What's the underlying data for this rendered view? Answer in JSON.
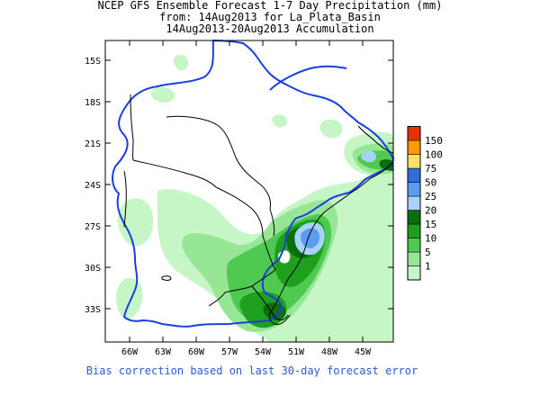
{
  "title": {
    "line1": "NCEP GFS Ensemble Forecast 1-7 Day Precipitation (mm)",
    "line2": "from: 14Aug2013   for La_Plata_Basin",
    "line3": "14Aug2013-20Aug2013 Accumulation"
  },
  "axes": {
    "y_ticks": [
      "15S",
      "18S",
      "21S",
      "24S",
      "27S",
      "30S",
      "33S"
    ],
    "x_ticks": [
      "66W",
      "63W",
      "60W",
      "57W",
      "54W",
      "51W",
      "48W",
      "45W"
    ]
  },
  "legend": {
    "levels": [
      {
        "label": "1",
        "color": "#c6f5c6"
      },
      {
        "label": "5",
        "color": "#96e696"
      },
      {
        "label": "10",
        "color": "#4fc94f"
      },
      {
        "label": "15",
        "color": "#1e9f1e"
      },
      {
        "label": "20",
        "color": "#0a6e0a"
      },
      {
        "label": "25",
        "color": "#a8d2ff"
      },
      {
        "label": "50",
        "color": "#5a9cf0"
      },
      {
        "label": "75",
        "color": "#2f6fd9"
      },
      {
        "label": "100",
        "color": "#ffe066"
      },
      {
        "label": "150",
        "color": "#ff9a00"
      },
      {
        "label": "",
        "color": "#e63200"
      }
    ]
  },
  "footer": "Bias correction based on last 30-day forecast error"
}
